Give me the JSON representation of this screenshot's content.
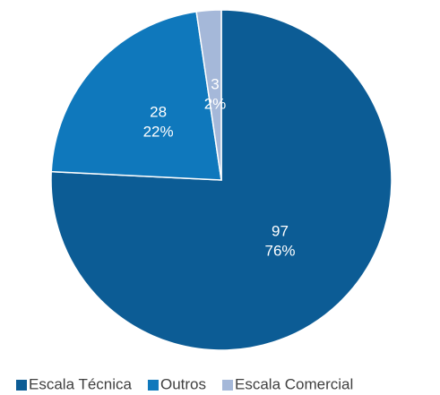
{
  "chart_data": {
    "type": "pie",
    "categories": [
      "Escala Técnica",
      "Outros",
      "Escala Comercial"
    ],
    "values": [
      97,
      28,
      3
    ],
    "percent_labels": [
      "76%",
      "22%",
      "2%"
    ],
    "colors": [
      "#0c5c95",
      "#0f78bc",
      "#a5b8d9"
    ],
    "legend": "bottom"
  }
}
